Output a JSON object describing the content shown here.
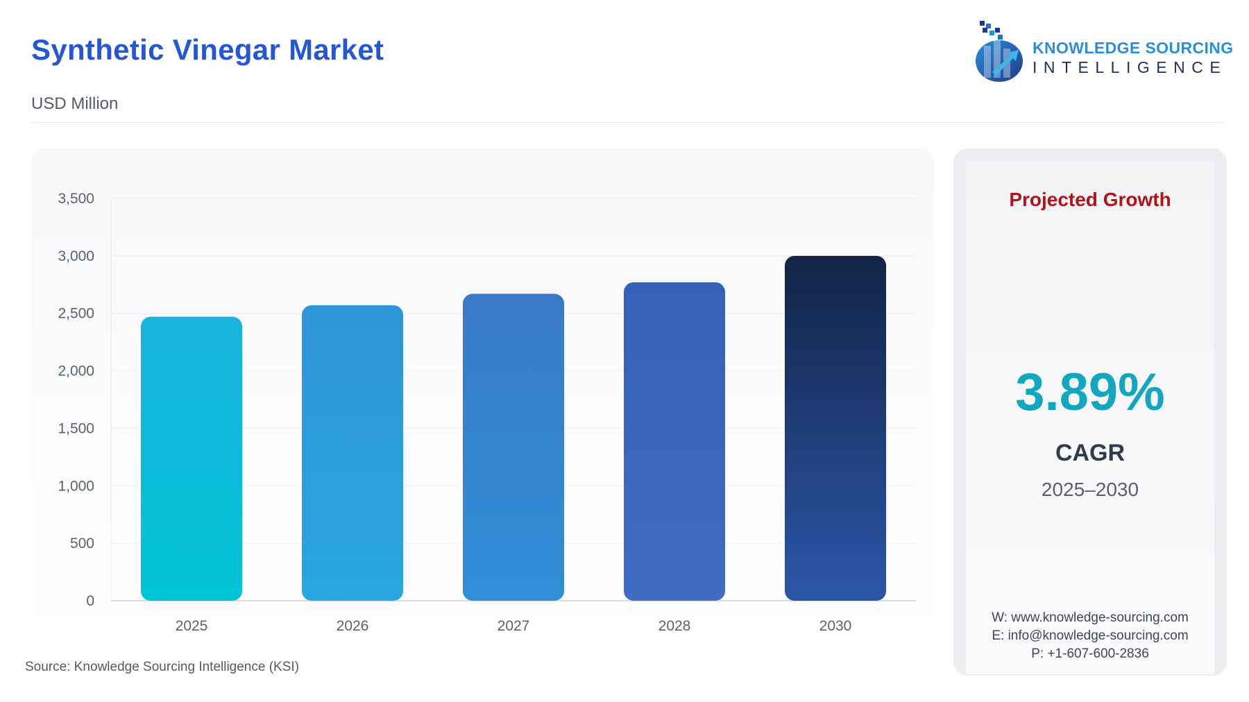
{
  "header": {
    "title": "Synthetic Vinegar Market",
    "subtitle": "USD Million"
  },
  "logo": {
    "line1": "KNOWLEDGE SOURCING",
    "line2": "INTELLIGENCE",
    "icon": "bar-chart-arrow-globe-icon"
  },
  "chart_data": {
    "type": "bar",
    "title": "Synthetic Vinegar Market",
    "subtitle": "USD Million",
    "categories": [
      "2025",
      "2026",
      "2027",
      "2028",
      "2030"
    ],
    "values": [
      2470,
      2570,
      2670,
      2770,
      3000
    ],
    "ylim": [
      0,
      3500
    ],
    "yticks": [
      0,
      500,
      1000,
      1500,
      2000,
      2500,
      3000,
      3500
    ],
    "ytick_labels": [
      "0",
      "500",
      "1,000",
      "1,500",
      "2,000",
      "2,500",
      "3,000",
      "3,500"
    ],
    "grid": true,
    "legend": "none",
    "bar_colors": [
      [
        "#1ab3dc",
        "#00c4d4"
      ],
      [
        "#2e95d8",
        "#2aa6e0"
      ],
      [
        "#3a7ac8",
        "#2f8fd6"
      ],
      [
        "#3562b8",
        "#3f6cc2"
      ],
      [
        "#122347",
        "#2b56a8"
      ]
    ]
  },
  "source": "Source: Knowledge Sourcing Intelligence (KSI)",
  "side_card": {
    "heading": "Projected Growth",
    "cagr_value": "3.89%",
    "cagr_label": "CAGR",
    "period": "2025–2030",
    "website": "W: www.knowledge-sourcing.com",
    "email": "E: info@knowledge-sourcing.com",
    "phone": "P: +1-607-600-2836"
  },
  "colors": {
    "title": "#2457d6",
    "heading_red": "#b3121b",
    "cagr_teal": "#12a7bf"
  }
}
